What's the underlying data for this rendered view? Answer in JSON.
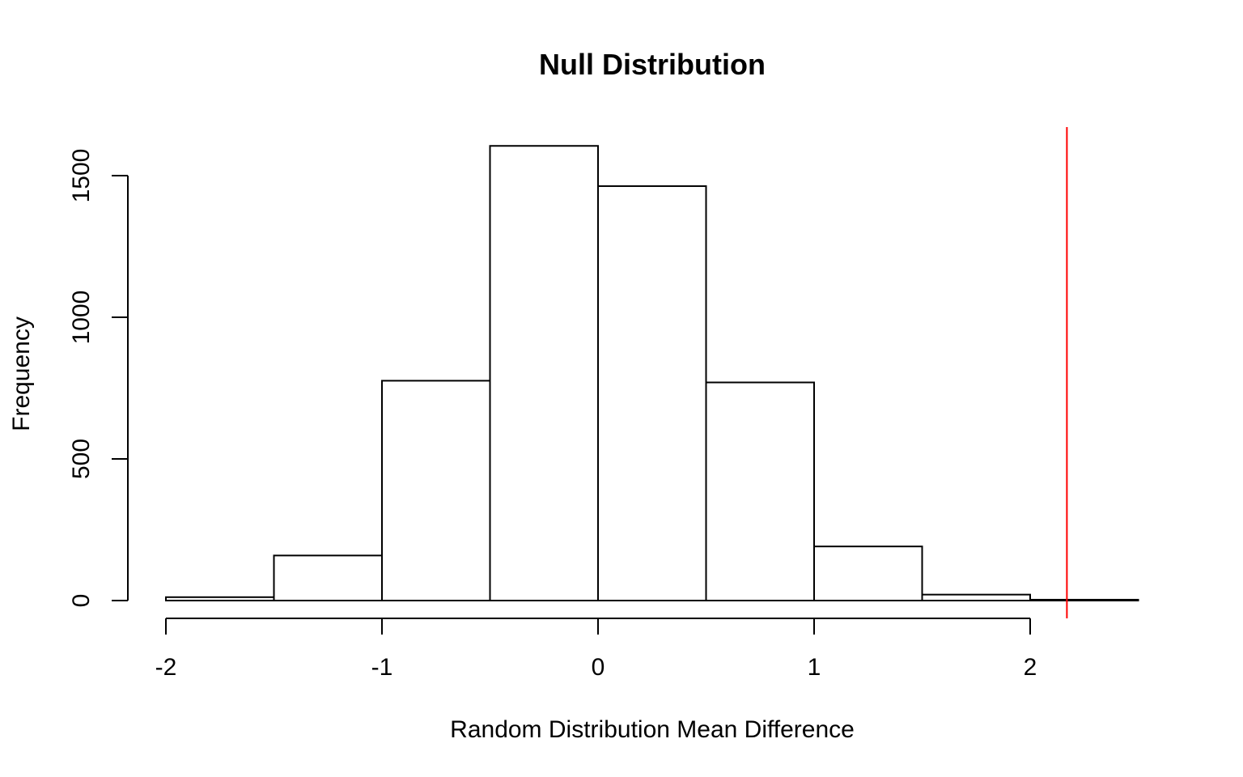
{
  "chart_data": {
    "type": "bar",
    "title": "Null Distribution",
    "xlabel": "Random Distribution Mean Difference",
    "ylabel": "Frequency",
    "bins": [
      {
        "x0": -2.0,
        "x1": -1.5,
        "count": 12
      },
      {
        "x0": -1.5,
        "x1": -1.0,
        "count": 159
      },
      {
        "x0": -1.0,
        "x1": -0.5,
        "count": 776
      },
      {
        "x0": -0.5,
        "x1": 0.0,
        "count": 1605
      },
      {
        "x0": 0.0,
        "x1": 0.5,
        "count": 1463
      },
      {
        "x0": 0.5,
        "x1": 1.0,
        "count": 770
      },
      {
        "x0": 1.0,
        "x1": 1.5,
        "count": 191
      },
      {
        "x0": 1.5,
        "x1": 2.0,
        "count": 21
      },
      {
        "x0": 2.0,
        "x1": 2.5,
        "count": 3
      }
    ],
    "x_ticks": [
      "-2",
      "-1",
      "0",
      "1",
      "2"
    ],
    "y_ticks": [
      "0",
      "500",
      "1000",
      "1500"
    ],
    "xlim": [
      -2,
      2.5
    ],
    "ylim": [
      0,
      1650
    ],
    "reference_line": {
      "x": 2.17,
      "color": "#ff0000"
    },
    "bar_fill": "#ffffff",
    "bar_stroke": "#000000",
    "grid": false
  }
}
